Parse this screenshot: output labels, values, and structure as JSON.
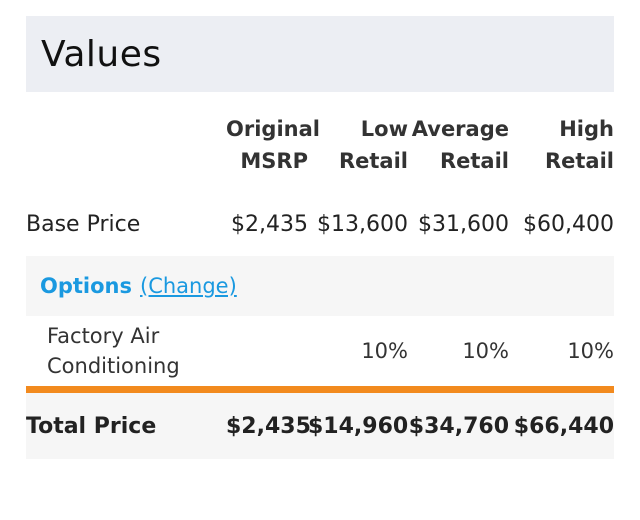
{
  "title": "Values",
  "columns": [
    {
      "line1": "Original",
      "line2": "MSRP"
    },
    {
      "line1": "Low",
      "line2": "Retail"
    },
    {
      "line1": "Average",
      "line2": "Retail"
    },
    {
      "line1": "High",
      "line2": "Retail"
    }
  ],
  "base_price": {
    "label": "Base Price",
    "values": [
      "$2,435",
      "$13,600",
      "$31,600",
      "$60,400"
    ]
  },
  "options": {
    "title": "Options",
    "change_label": "(Change)",
    "items": [
      {
        "label": "Factory Air Conditioning",
        "values": [
          "",
          "10%",
          "10%",
          "10%"
        ]
      }
    ]
  },
  "total_price": {
    "label": "Total Price",
    "values": [
      "$2,435",
      "$14,960",
      "$34,760",
      "$66,440"
    ]
  },
  "colors": {
    "accent_link": "#1a99e0",
    "divider": "#f28a1e",
    "header_bg": "#eceef3"
  }
}
